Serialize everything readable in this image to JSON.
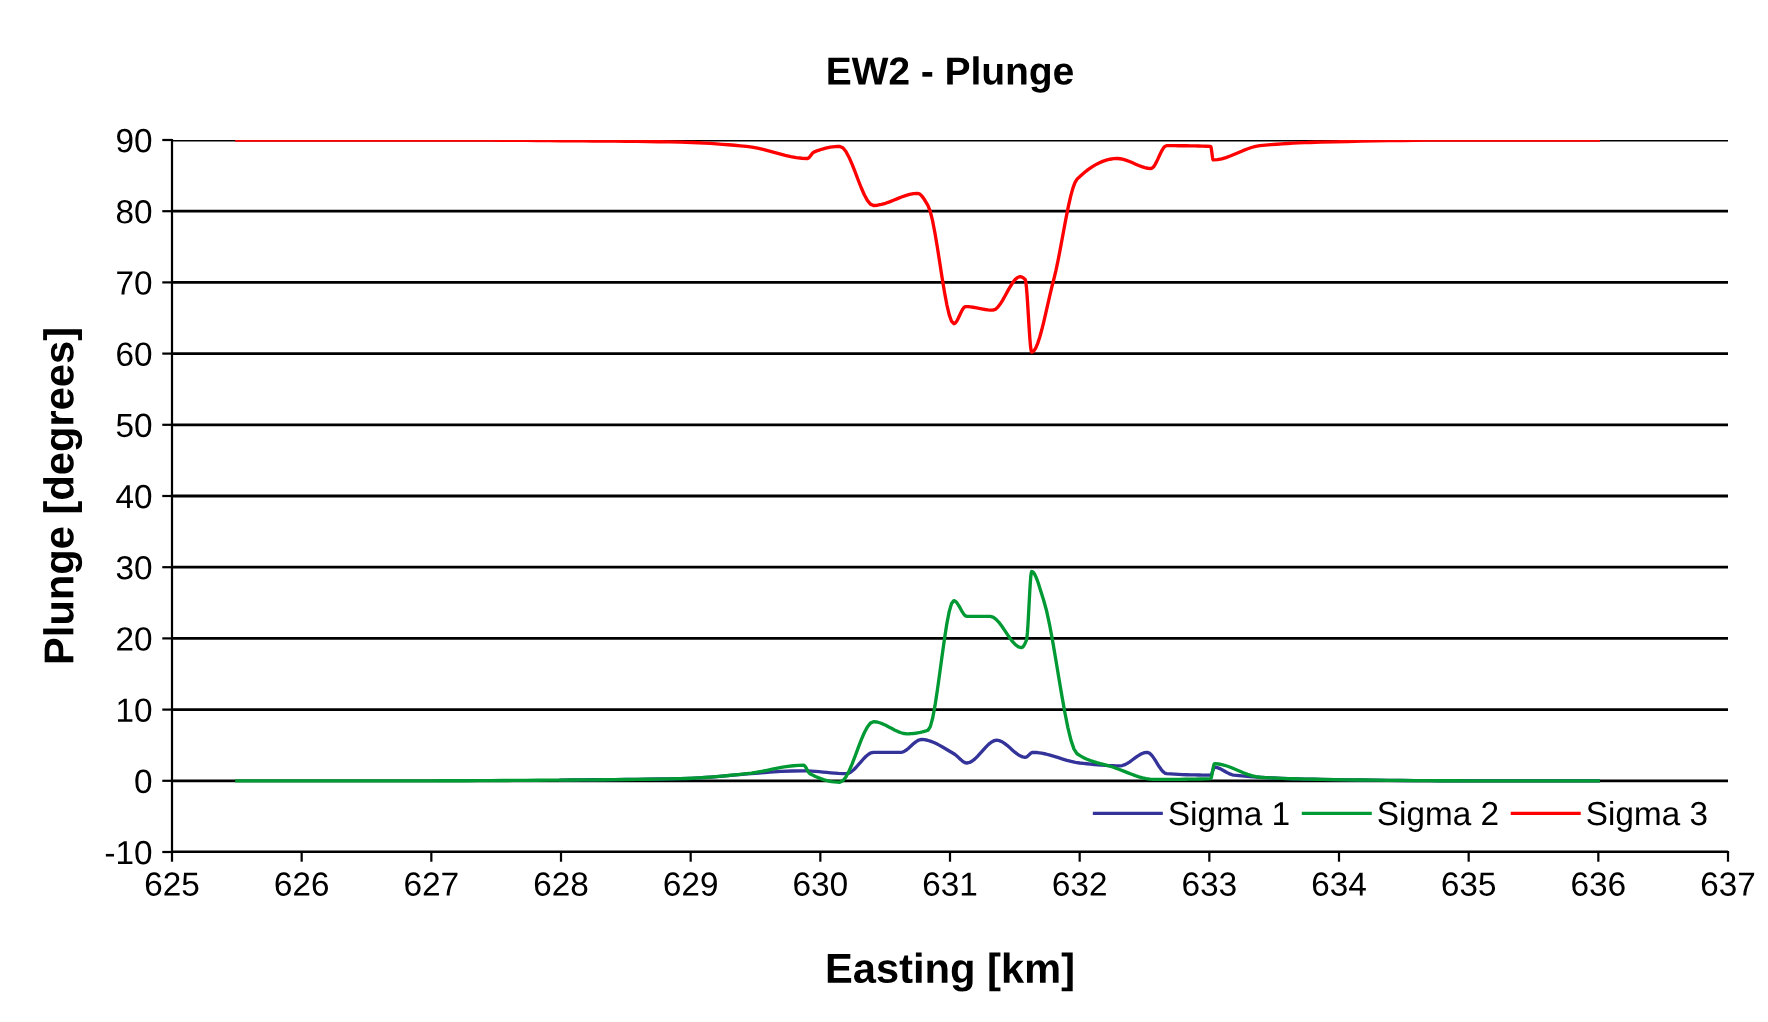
{
  "chart_data": {
    "type": "line",
    "title": "EW2 - Plunge",
    "xlabel": "Easting [km]",
    "ylabel": "Plunge [degrees]",
    "xlim": [
      625,
      637
    ],
    "xticks": [
      625,
      626,
      627,
      628,
      629,
      630,
      631,
      632,
      633,
      634,
      635,
      636,
      637
    ],
    "ylim": [
      -10,
      90
    ],
    "yticks": [
      -10,
      0,
      10,
      20,
      30,
      40,
      50,
      60,
      70,
      80,
      90
    ],
    "grid": "y",
    "legend": "bottom right",
    "marker": "none",
    "line_style": "solid",
    "series": [
      {
        "name": "Sigma 1",
        "color": "#333399",
        "x": [
          628,
          628.92,
          629.87,
          630.2,
          630.41,
          630.62,
          630.78,
          631.03,
          631.13,
          631.36,
          631.58,
          631.64,
          632.0,
          632.31,
          632.52,
          632.67,
          633.01,
          633.04,
          633.19,
          633.86,
          635,
          636
        ],
        "values": [
          0.1,
          0.3,
          1.4,
          1.0,
          4.0,
          4.0,
          5.8,
          3.8,
          2.5,
          5.7,
          3.3,
          4.0,
          2.5,
          2.1,
          4.0,
          1.0,
          0.8,
          1.9,
          0.8,
          0.2,
          0,
          0
        ]
      },
      {
        "name": "Sigma 2",
        "color": "#009933",
        "x": [
          625.5,
          627,
          628,
          628.92,
          629.43,
          629.87,
          629.92,
          630.15,
          630.41,
          630.67,
          630.83,
          631.03,
          631.13,
          631.31,
          631.55,
          631.59,
          631.63,
          631.72,
          631.98,
          632.26,
          632.57,
          633.01,
          633.04,
          633.39,
          633.86,
          635,
          636
        ],
        "values": [
          0,
          0,
          0.1,
          0.3,
          1.0,
          2.2,
          1.0,
          -0.2,
          8.3,
          6.6,
          7.1,
          25.3,
          23.1,
          23.1,
          18.7,
          19.8,
          29.4,
          25.5,
          3.8,
          1.9,
          0.2,
          0.3,
          2.4,
          0.5,
          0.2,
          0,
          0
        ]
      },
      {
        "name": "Sigma 3",
        "color": "#ff0000",
        "x": [
          625.5,
          627,
          628,
          628.92,
          629.43,
          629.9,
          629.95,
          630.15,
          630.41,
          630.75,
          630.83,
          631.03,
          631.12,
          631.33,
          631.54,
          631.58,
          631.63,
          631.8,
          631.98,
          632.29,
          632.55,
          632.67,
          633.01,
          633.03,
          633.39,
          633.86,
          635,
          636
        ],
        "values": [
          90,
          90,
          89.9,
          89.7,
          89.1,
          87.4,
          88.3,
          89.1,
          80.8,
          82.5,
          80.8,
          64.2,
          66.6,
          66.1,
          70.8,
          70.4,
          60.2,
          70.4,
          84.5,
          87.4,
          86.0,
          89.2,
          89.1,
          87.2,
          89.2,
          89.7,
          90,
          90
        ]
      }
    ]
  }
}
